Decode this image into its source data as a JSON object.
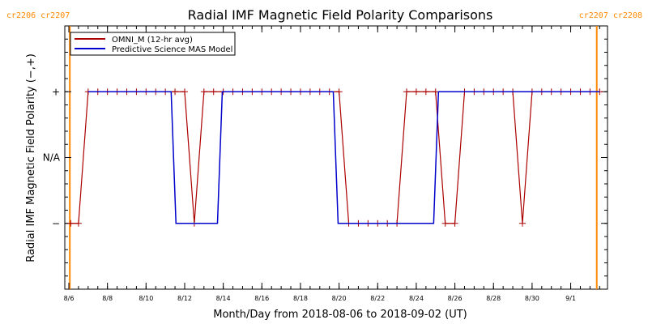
{
  "chart_data": {
    "type": "line",
    "title": "Radial IMF Magnetic Field Polarity Comparisons",
    "xlabel": "Month/Day from 2018-08-06 to 2018-09-02 (UT)",
    "ylabel": "Radial IMF Magnetic Field Polarity (−,+)",
    "x_range_days": [
      0,
      27.5
    ],
    "x_ticks": [
      {
        "day": 0,
        "label": "8/6"
      },
      {
        "day": 2,
        "label": "8/8"
      },
      {
        "day": 4,
        "label": "8/10"
      },
      {
        "day": 6,
        "label": "8/12"
      },
      {
        "day": 8,
        "label": "8/14"
      },
      {
        "day": 10,
        "label": "8/16"
      },
      {
        "day": 12,
        "label": "8/18"
      },
      {
        "day": 14,
        "label": "8/20"
      },
      {
        "day": 16,
        "label": "8/22"
      },
      {
        "day": 18,
        "label": "8/24"
      },
      {
        "day": 20,
        "label": "8/26"
      },
      {
        "day": 22,
        "label": "8/28"
      },
      {
        "day": 24,
        "label": "8/30"
      },
      {
        "day": 26,
        "label": "9/1"
      }
    ],
    "y_range": [
      -2,
      2
    ],
    "y_ticks": [
      {
        "value": 1,
        "label": "+"
      },
      {
        "value": 0,
        "label": "N/A"
      },
      {
        "value": -1,
        "label": "−"
      }
    ],
    "legend_position": "top-left",
    "series": [
      {
        "name": "OMNI_M (12-hr avg)",
        "color": "#aa0000",
        "marker": "plus",
        "points": [
          [
            0.1,
            -1
          ],
          [
            0.5,
            -1
          ],
          [
            1.0,
            1
          ],
          [
            1.5,
            1
          ],
          [
            2.0,
            1
          ],
          [
            2.5,
            1
          ],
          [
            3.0,
            1
          ],
          [
            3.5,
            1
          ],
          [
            4.0,
            1
          ],
          [
            4.5,
            1
          ],
          [
            5.0,
            1
          ],
          [
            5.5,
            1
          ],
          [
            6.0,
            1
          ],
          [
            6.5,
            -1
          ],
          [
            7.0,
            1
          ],
          [
            7.5,
            1
          ],
          [
            8.0,
            1
          ],
          [
            8.5,
            1
          ],
          [
            9.0,
            1
          ],
          [
            9.5,
            1
          ],
          [
            10.0,
            1
          ],
          [
            10.5,
            1
          ],
          [
            11.0,
            1
          ],
          [
            11.5,
            1
          ],
          [
            12.0,
            1
          ],
          [
            12.5,
            1
          ],
          [
            13.0,
            1
          ],
          [
            13.5,
            1
          ],
          [
            14.0,
            1
          ],
          [
            14.5,
            -1
          ],
          [
            15.0,
            -1
          ],
          [
            15.5,
            -1
          ],
          [
            16.0,
            -1
          ],
          [
            16.5,
            -1
          ],
          [
            17.0,
            -1
          ],
          [
            17.5,
            1
          ],
          [
            18.0,
            1
          ],
          [
            18.5,
            1
          ],
          [
            19.0,
            1
          ],
          [
            19.5,
            -1
          ],
          [
            20.0,
            -1
          ],
          [
            20.5,
            1
          ],
          [
            21.0,
            1
          ],
          [
            21.5,
            1
          ],
          [
            22.0,
            1
          ],
          [
            22.5,
            1
          ],
          [
            23.0,
            1
          ],
          [
            23.5,
            -1
          ],
          [
            24.0,
            1
          ],
          [
            24.5,
            1
          ],
          [
            25.0,
            1
          ],
          [
            25.5,
            1
          ],
          [
            26.0,
            1
          ],
          [
            26.5,
            1
          ],
          [
            27.0,
            1
          ],
          [
            27.5,
            1
          ]
        ]
      },
      {
        "name": "Predictive Science MAS Model",
        "color": "#0000cc",
        "marker": "none",
        "points": [
          [
            1.0,
            1
          ],
          [
            5.3,
            1
          ],
          [
            5.55,
            -1
          ],
          [
            7.7,
            -1
          ],
          [
            7.95,
            1
          ],
          [
            13.7,
            1
          ],
          [
            13.95,
            -1
          ],
          [
            18.9,
            -1
          ],
          [
            19.15,
            1
          ],
          [
            27.5,
            1
          ]
        ]
      }
    ],
    "carrington_markers": [
      {
        "day": 0.05,
        "label": "cr2206 cr2207",
        "color": "#ff8800"
      },
      {
        "day": 27.35,
        "label": "cr2207 cr2208",
        "color": "#ff8800"
      }
    ]
  }
}
